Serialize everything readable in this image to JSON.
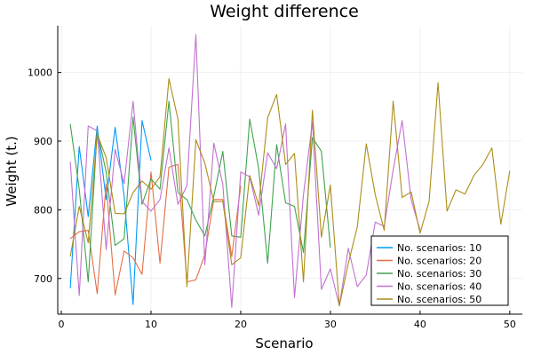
{
  "chart_data": {
    "type": "line",
    "title": "Weight difference",
    "xlabel": "Scenario",
    "ylabel": "Weight (t.)",
    "xlim": [
      -0.4,
      51.4
    ],
    "ylim": [
      648,
      1068
    ],
    "xticks": [
      0,
      10,
      20,
      30,
      40,
      50
    ],
    "yticks": [
      700,
      800,
      900,
      1000
    ],
    "grid": true,
    "legend_position": "bottom-right",
    "series": [
      {
        "name": "No. scenarios: 10",
        "color": "#009AFA",
        "x": [
          1,
          2,
          3,
          4,
          5,
          6,
          7,
          8,
          9,
          10
        ],
        "y": [
          686,
          892,
          790,
          922,
          815,
          920,
          820,
          662,
          930,
          872
        ]
      },
      {
        "name": "No. scenarios: 20",
        "color": "#E36F47",
        "x": [
          1,
          2,
          3,
          4,
          5,
          6,
          7,
          8,
          9,
          10,
          11,
          12,
          13,
          14,
          15,
          16,
          17,
          18,
          19,
          20
        ],
        "y": [
          758,
          768,
          770,
          678,
          838,
          676,
          740,
          730,
          706,
          855,
          722,
          862,
          866,
          695,
          698,
          735,
          815,
          815,
          732,
          835
        ]
      },
      {
        "name": "No. scenarios: 30",
        "color": "#3EA44E",
        "x": [
          1,
          2,
          3,
          4,
          5,
          6,
          7,
          8,
          9,
          10,
          11,
          12,
          13,
          14,
          15,
          16,
          17,
          18,
          19,
          20,
          21,
          22,
          23,
          24,
          25,
          26,
          27,
          28,
          29,
          30
        ],
        "y": [
          925,
          830,
          695,
          915,
          855,
          748,
          758,
          935,
          808,
          845,
          830,
          958,
          825,
          815,
          785,
          762,
          820,
          885,
          762,
          760,
          932,
          860,
          722,
          895,
          810,
          805,
          738,
          905,
          885,
          745
        ]
      },
      {
        "name": "No. scenarios: 40",
        "color": "#C271D2",
        "x": [
          1,
          2,
          3,
          4,
          5,
          6,
          7,
          8,
          9,
          10,
          11,
          12,
          13,
          14,
          15,
          16,
          17,
          18,
          19,
          20,
          21,
          22,
          23,
          24,
          25,
          26,
          27,
          28,
          29,
          30,
          31,
          32,
          33,
          34,
          35,
          36,
          37,
          38,
          39,
          40
        ],
        "y": [
          870,
          675,
          922,
          915,
          742,
          888,
          838,
          958,
          812,
          798,
          815,
          890,
          808,
          835,
          1055,
          720,
          897,
          837,
          658,
          855,
          848,
          792,
          883,
          860,
          925,
          672,
          822,
          928,
          684,
          714,
          660,
          744,
          688,
          705,
          782,
          776,
          858,
          930,
          815,
          770
        ]
      },
      {
        "name": "No. scenarios: 50",
        "color": "#AC8D18",
        "x": [
          1,
          2,
          3,
          4,
          5,
          6,
          7,
          8,
          9,
          10,
          11,
          12,
          13,
          14,
          15,
          16,
          17,
          18,
          19,
          20,
          21,
          22,
          23,
          24,
          25,
          26,
          27,
          28,
          29,
          30,
          31,
          32,
          33,
          34,
          35,
          36,
          37,
          38,
          39,
          40,
          41,
          42,
          43,
          44,
          45,
          46,
          47,
          48,
          49,
          50
        ],
        "y": [
          732,
          805,
          752,
          910,
          876,
          795,
          794,
          825,
          842,
          830,
          848,
          991,
          932,
          688,
          902,
          868,
          812,
          812,
          720,
          730,
          850,
          806,
          934,
          968,
          866,
          882,
          695,
          945,
          760,
          836,
          660,
          722,
          775,
          896,
          822,
          770,
          958,
          818,
          826,
          766,
          812,
          985,
          798,
          829,
          823,
          850,
          866,
          890,
          779,
          857
        ]
      }
    ]
  }
}
